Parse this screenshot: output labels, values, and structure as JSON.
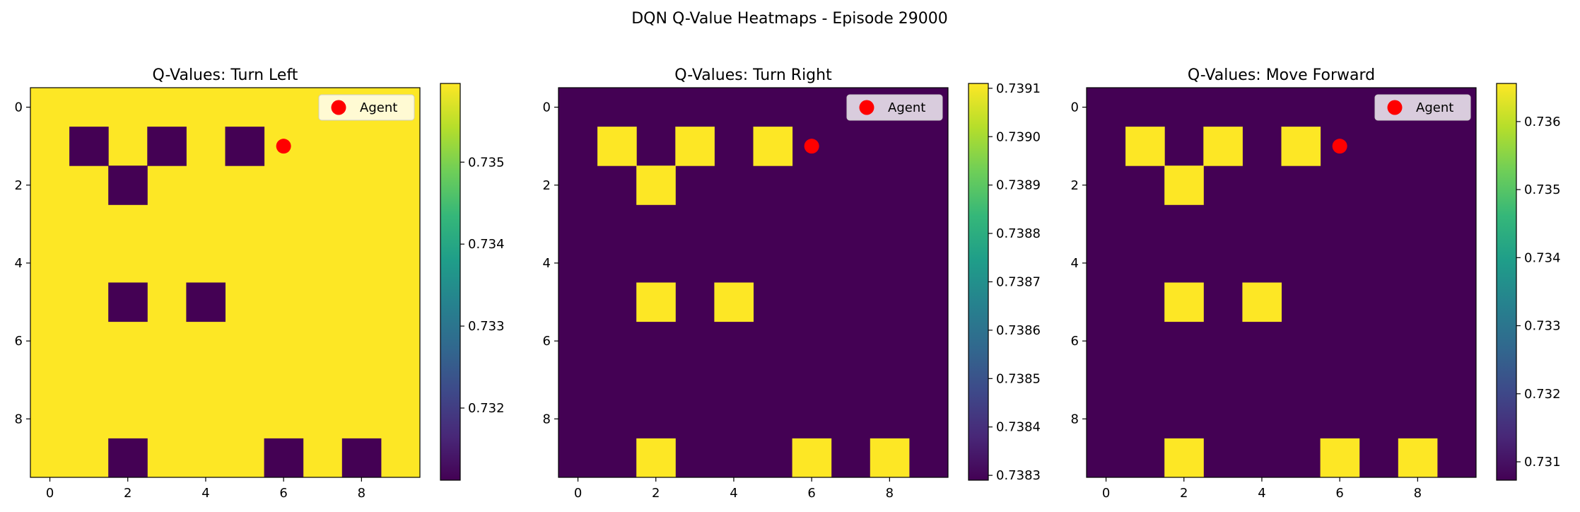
{
  "figure_title": "DQN Q-Value Heatmaps - Episode 29000",
  "colors": {
    "low": "#440154",
    "high": "#fde725",
    "agent": "#ff0000",
    "viridis": [
      "#440154",
      "#482878",
      "#3e4989",
      "#31688e",
      "#26828e",
      "#1f9e89",
      "#35b779",
      "#6ece58",
      "#b5de2b",
      "#fde725"
    ]
  },
  "chart_data": [
    {
      "type": "heatmap",
      "title": "Q-Values: Turn Left",
      "grid_size": 10,
      "xticks": [
        0,
        2,
        4,
        6,
        8
      ],
      "yticks": [
        0,
        2,
        4,
        6,
        8
      ],
      "background": "high",
      "special_state": "low",
      "special_cells": [
        [
          1,
          1
        ],
        [
          3,
          1
        ],
        [
          5,
          1
        ],
        [
          2,
          2
        ],
        [
          2,
          5
        ],
        [
          4,
          5
        ],
        [
          2,
          9
        ],
        [
          6,
          9
        ],
        [
          8,
          9
        ]
      ],
      "agent": {
        "x": 6,
        "y": 1,
        "label": "Agent"
      },
      "legend_position": "upper right",
      "colorbar": {
        "min": 0.73112,
        "max": 0.73596,
        "ticks": [
          0.732,
          0.733,
          0.734,
          0.735
        ],
        "tick_labels": [
          "0.732",
          "0.733",
          "0.734",
          "0.735"
        ]
      }
    },
    {
      "type": "heatmap",
      "title": "Q-Values: Turn Right",
      "grid_size": 10,
      "xticks": [
        0,
        2,
        4,
        6,
        8
      ],
      "yticks": [
        0,
        2,
        4,
        6,
        8
      ],
      "background": "low",
      "special_state": "high",
      "special_cells": [
        [
          1,
          1
        ],
        [
          3,
          1
        ],
        [
          5,
          1
        ],
        [
          2,
          2
        ],
        [
          2,
          5
        ],
        [
          4,
          5
        ],
        [
          2,
          9
        ],
        [
          6,
          9
        ],
        [
          8,
          9
        ]
      ],
      "agent": {
        "x": 6,
        "y": 1,
        "label": "Agent"
      },
      "legend_position": "upper right",
      "colorbar": {
        "min": 0.73829,
        "max": 0.73911,
        "ticks": [
          0.7383,
          0.7384,
          0.7385,
          0.7386,
          0.7387,
          0.7388,
          0.7389,
          0.739,
          0.7391
        ],
        "tick_labels": [
          "0.7383",
          "0.7384",
          "0.7385",
          "0.7386",
          "0.7387",
          "0.7388",
          "0.7389",
          "0.7390",
          "0.7391"
        ]
      }
    },
    {
      "type": "heatmap",
      "title": "Q-Values: Move Forward",
      "grid_size": 10,
      "xticks": [
        0,
        2,
        4,
        6,
        8
      ],
      "yticks": [
        0,
        2,
        4,
        6,
        8
      ],
      "background": "low",
      "special_state": "high",
      "special_cells": [
        [
          1,
          1
        ],
        [
          3,
          1
        ],
        [
          5,
          1
        ],
        [
          2,
          2
        ],
        [
          2,
          5
        ],
        [
          4,
          5
        ],
        [
          2,
          9
        ],
        [
          6,
          9
        ],
        [
          8,
          9
        ]
      ],
      "agent": {
        "x": 6,
        "y": 1,
        "label": "Agent"
      },
      "legend_position": "upper right",
      "colorbar": {
        "min": 0.73073,
        "max": 0.73656,
        "ticks": [
          0.731,
          0.732,
          0.733,
          0.734,
          0.735,
          0.736
        ],
        "tick_labels": [
          "0.731",
          "0.732",
          "0.733",
          "0.734",
          "0.735",
          "0.736"
        ]
      }
    }
  ]
}
